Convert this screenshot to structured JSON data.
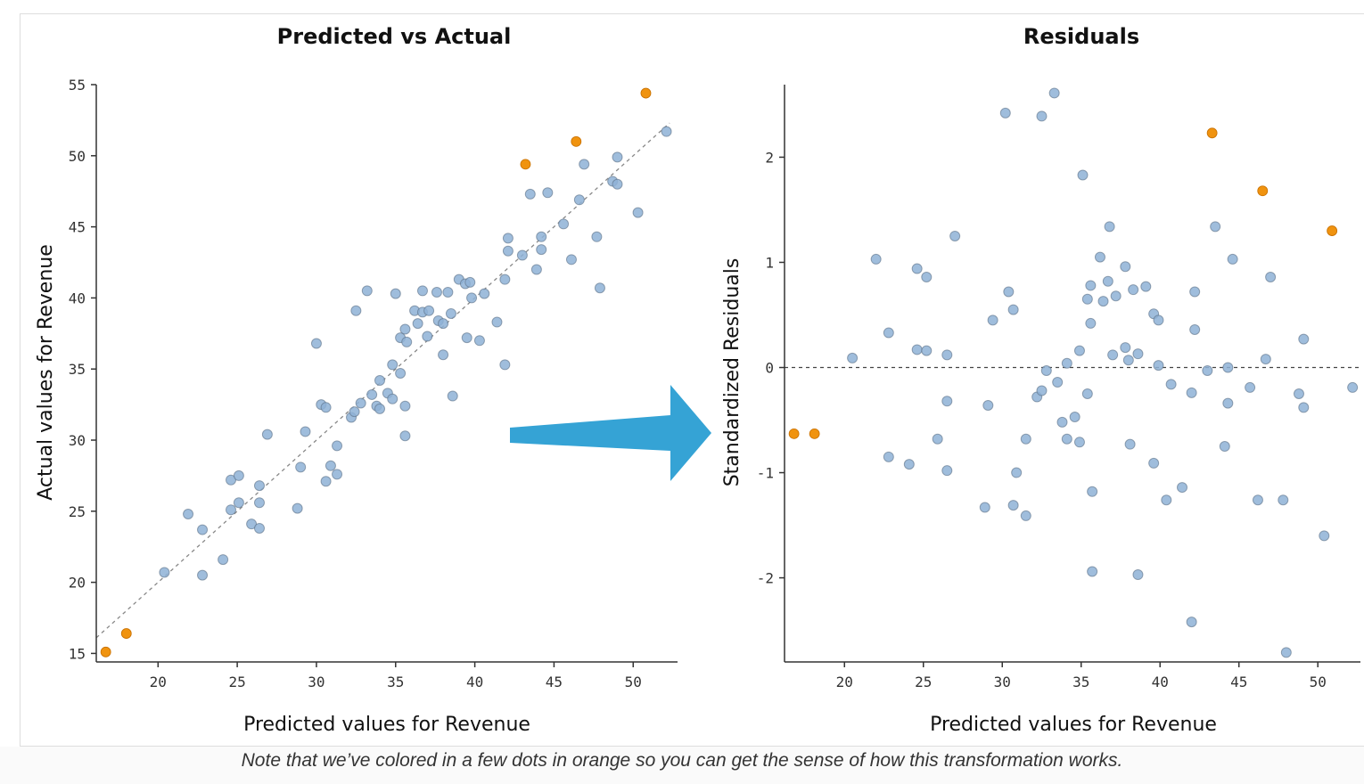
{
  "caption": "Note that we’ve colored in a few dots in orange so you can get the sense of how this transformation works.",
  "colors": {
    "point": "#8eb1d6",
    "point_stroke": "#5b6f86",
    "highlight": "#f0930f",
    "arrow": "#35a3d5",
    "axis": "#333333",
    "reference_line": "#888888"
  },
  "chart_data": [
    {
      "type": "scatter",
      "title": "Predicted vs Actual",
      "xlabel": "Predicted values for Revenue",
      "ylabel": "Actual values for Revenue",
      "xlim": [
        16.1,
        52.8
      ],
      "ylim": [
        14.4,
        55
      ],
      "xticks": [
        20,
        25,
        30,
        35,
        40,
        45,
        50
      ],
      "yticks": [
        15,
        20,
        25,
        30,
        35,
        40,
        45,
        50,
        55
      ],
      "grid": false,
      "reference_line": {
        "type": "y=x",
        "style": "dashed"
      },
      "highlighted_points": [
        [
          16.7,
          15.1
        ],
        [
          18.0,
          16.4
        ],
        [
          43.2,
          49.4
        ],
        [
          46.4,
          51.0
        ],
        [
          50.8,
          54.4
        ]
      ],
      "points": [
        [
          20.4,
          20.7
        ],
        [
          21.9,
          24.8
        ],
        [
          22.8,
          23.7
        ],
        [
          22.8,
          20.5
        ],
        [
          24.1,
          21.6
        ],
        [
          24.6,
          27.2
        ],
        [
          24.6,
          25.1
        ],
        [
          25.1,
          27.5
        ],
        [
          25.1,
          25.6
        ],
        [
          25.9,
          24.1
        ],
        [
          26.4,
          26.8
        ],
        [
          26.4,
          25.6
        ],
        [
          26.4,
          23.8
        ],
        [
          26.9,
          30.4
        ],
        [
          28.8,
          25.2
        ],
        [
          29.0,
          28.1
        ],
        [
          29.3,
          30.6
        ],
        [
          30.0,
          36.8
        ],
        [
          30.3,
          32.5
        ],
        [
          30.6,
          32.3
        ],
        [
          30.6,
          27.1
        ],
        [
          30.9,
          28.2
        ],
        [
          31.3,
          29.6
        ],
        [
          31.3,
          27.6
        ],
        [
          32.2,
          31.6
        ],
        [
          32.4,
          32.0
        ],
        [
          32.5,
          39.1
        ],
        [
          32.8,
          32.6
        ],
        [
          33.2,
          40.5
        ],
        [
          33.5,
          33.2
        ],
        [
          33.8,
          32.4
        ],
        [
          34.0,
          32.2
        ],
        [
          34.0,
          34.2
        ],
        [
          34.5,
          33.3
        ],
        [
          34.8,
          32.9
        ],
        [
          34.8,
          35.3
        ],
        [
          35.0,
          40.3
        ],
        [
          35.3,
          34.7
        ],
        [
          35.3,
          37.2
        ],
        [
          35.6,
          32.4
        ],
        [
          35.6,
          30.3
        ],
        [
          35.6,
          37.8
        ],
        [
          35.7,
          36.9
        ],
        [
          36.2,
          39.1
        ],
        [
          36.4,
          38.2
        ],
        [
          36.7,
          40.5
        ],
        [
          36.7,
          39.0
        ],
        [
          37.0,
          37.3
        ],
        [
          37.1,
          39.1
        ],
        [
          37.6,
          40.4
        ],
        [
          37.7,
          38.4
        ],
        [
          38.0,
          38.2
        ],
        [
          38.0,
          36.0
        ],
        [
          38.3,
          40.4
        ],
        [
          38.5,
          38.9
        ],
        [
          38.6,
          33.1
        ],
        [
          39.0,
          41.3
        ],
        [
          39.4,
          41.0
        ],
        [
          39.5,
          37.2
        ],
        [
          39.7,
          41.1
        ],
        [
          39.8,
          40.0
        ],
        [
          40.3,
          37.0
        ],
        [
          40.6,
          40.3
        ],
        [
          41.4,
          38.3
        ],
        [
          41.9,
          35.3
        ],
        [
          41.9,
          41.3
        ],
        [
          42.1,
          43.3
        ],
        [
          42.1,
          44.2
        ],
        [
          43.0,
          43.0
        ],
        [
          43.5,
          47.3
        ],
        [
          43.9,
          42.0
        ],
        [
          44.2,
          44.3
        ],
        [
          44.2,
          43.4
        ],
        [
          44.6,
          47.4
        ],
        [
          45.6,
          45.2
        ],
        [
          46.1,
          42.7
        ],
        [
          46.6,
          46.9
        ],
        [
          46.9,
          49.4
        ],
        [
          47.7,
          44.3
        ],
        [
          47.9,
          40.7
        ],
        [
          48.7,
          48.2
        ],
        [
          49.0,
          49.9
        ],
        [
          49.0,
          48.0
        ],
        [
          50.3,
          46.0
        ],
        [
          52.1,
          51.7
        ]
      ]
    },
    {
      "type": "scatter",
      "title": "Residuals",
      "xlabel": "Predicted values for Revenue",
      "ylabel": "Standardized Residuals",
      "xlim": [
        16.2,
        52.7
      ],
      "ylim": [
        -2.8,
        2.69
      ],
      "xticks": [
        20,
        25,
        30,
        35,
        40,
        45,
        50
      ],
      "yticks": [
        -2,
        -1,
        0,
        1,
        2
      ],
      "grid": false,
      "reference_line": {
        "type": "y=0",
        "style": "dashed"
      },
      "highlighted_points": [
        [
          16.8,
          -0.63
        ],
        [
          18.1,
          -0.63
        ],
        [
          43.3,
          2.23
        ],
        [
          46.5,
          1.68
        ],
        [
          50.9,
          1.3
        ]
      ],
      "points": [
        [
          20.5,
          0.09
        ],
        [
          22.0,
          1.03
        ],
        [
          22.8,
          0.33
        ],
        [
          22.8,
          -0.85
        ],
        [
          24.1,
          -0.92
        ],
        [
          24.6,
          0.94
        ],
        [
          24.6,
          0.17
        ],
        [
          25.2,
          0.86
        ],
        [
          25.2,
          0.16
        ],
        [
          25.9,
          -0.68
        ],
        [
          26.5,
          0.12
        ],
        [
          26.5,
          -0.32
        ],
        [
          26.5,
          -0.98
        ],
        [
          27.0,
          1.25
        ],
        [
          28.9,
          -1.33
        ],
        [
          29.1,
          -0.36
        ],
        [
          29.4,
          0.45
        ],
        [
          30.2,
          2.42
        ],
        [
          30.4,
          0.72
        ],
        [
          30.7,
          0.55
        ],
        [
          30.7,
          -1.31
        ],
        [
          30.9,
          -1.0
        ],
        [
          31.5,
          -1.41
        ],
        [
          31.5,
          -0.68
        ],
        [
          32.2,
          -0.28
        ],
        [
          32.5,
          -0.22
        ],
        [
          32.5,
          2.39
        ],
        [
          32.8,
          -0.03
        ],
        [
          33.3,
          2.61
        ],
        [
          33.5,
          -0.14
        ],
        [
          33.8,
          -0.52
        ],
        [
          34.1,
          0.04
        ],
        [
          34.1,
          -0.68
        ],
        [
          34.6,
          -0.47
        ],
        [
          34.9,
          0.16
        ],
        [
          34.9,
          -0.71
        ],
        [
          35.1,
          1.83
        ],
        [
          35.4,
          0.65
        ],
        [
          35.4,
          -0.25
        ],
        [
          35.6,
          0.78
        ],
        [
          35.6,
          0.42
        ],
        [
          35.7,
          -1.18
        ],
        [
          35.7,
          -1.94
        ],
        [
          36.2,
          1.05
        ],
        [
          36.4,
          0.63
        ],
        [
          36.7,
          0.82
        ],
        [
          36.8,
          1.34
        ],
        [
          37.0,
          0.12
        ],
        [
          37.2,
          0.68
        ],
        [
          37.8,
          0.96
        ],
        [
          37.8,
          0.19
        ],
        [
          38.0,
          0.07
        ],
        [
          38.1,
          -0.73
        ],
        [
          38.3,
          0.74
        ],
        [
          38.6,
          0.13
        ],
        [
          38.6,
          -1.97
        ],
        [
          39.1,
          0.77
        ],
        [
          39.6,
          0.51
        ],
        [
          39.6,
          -0.91
        ],
        [
          39.9,
          0.45
        ],
        [
          39.9,
          0.02
        ],
        [
          40.4,
          -1.26
        ],
        [
          40.7,
          -0.16
        ],
        [
          41.4,
          -1.14
        ],
        [
          42.0,
          -0.24
        ],
        [
          42.0,
          -2.42
        ],
        [
          42.2,
          0.72
        ],
        [
          42.2,
          0.36
        ],
        [
          43.0,
          -0.03
        ],
        [
          43.5,
          1.34
        ],
        [
          44.1,
          -0.75
        ],
        [
          44.3,
          0.0
        ],
        [
          44.3,
          -0.34
        ],
        [
          44.6,
          1.03
        ],
        [
          45.7,
          -0.19
        ],
        [
          46.2,
          -1.26
        ],
        [
          46.7,
          0.08
        ],
        [
          47.0,
          0.86
        ],
        [
          47.8,
          -1.26
        ],
        [
          48.0,
          -2.71
        ],
        [
          48.8,
          -0.25
        ],
        [
          49.1,
          -0.38
        ],
        [
          49.1,
          0.27
        ],
        [
          50.4,
          -1.6
        ],
        [
          52.2,
          -0.19
        ]
      ]
    }
  ]
}
